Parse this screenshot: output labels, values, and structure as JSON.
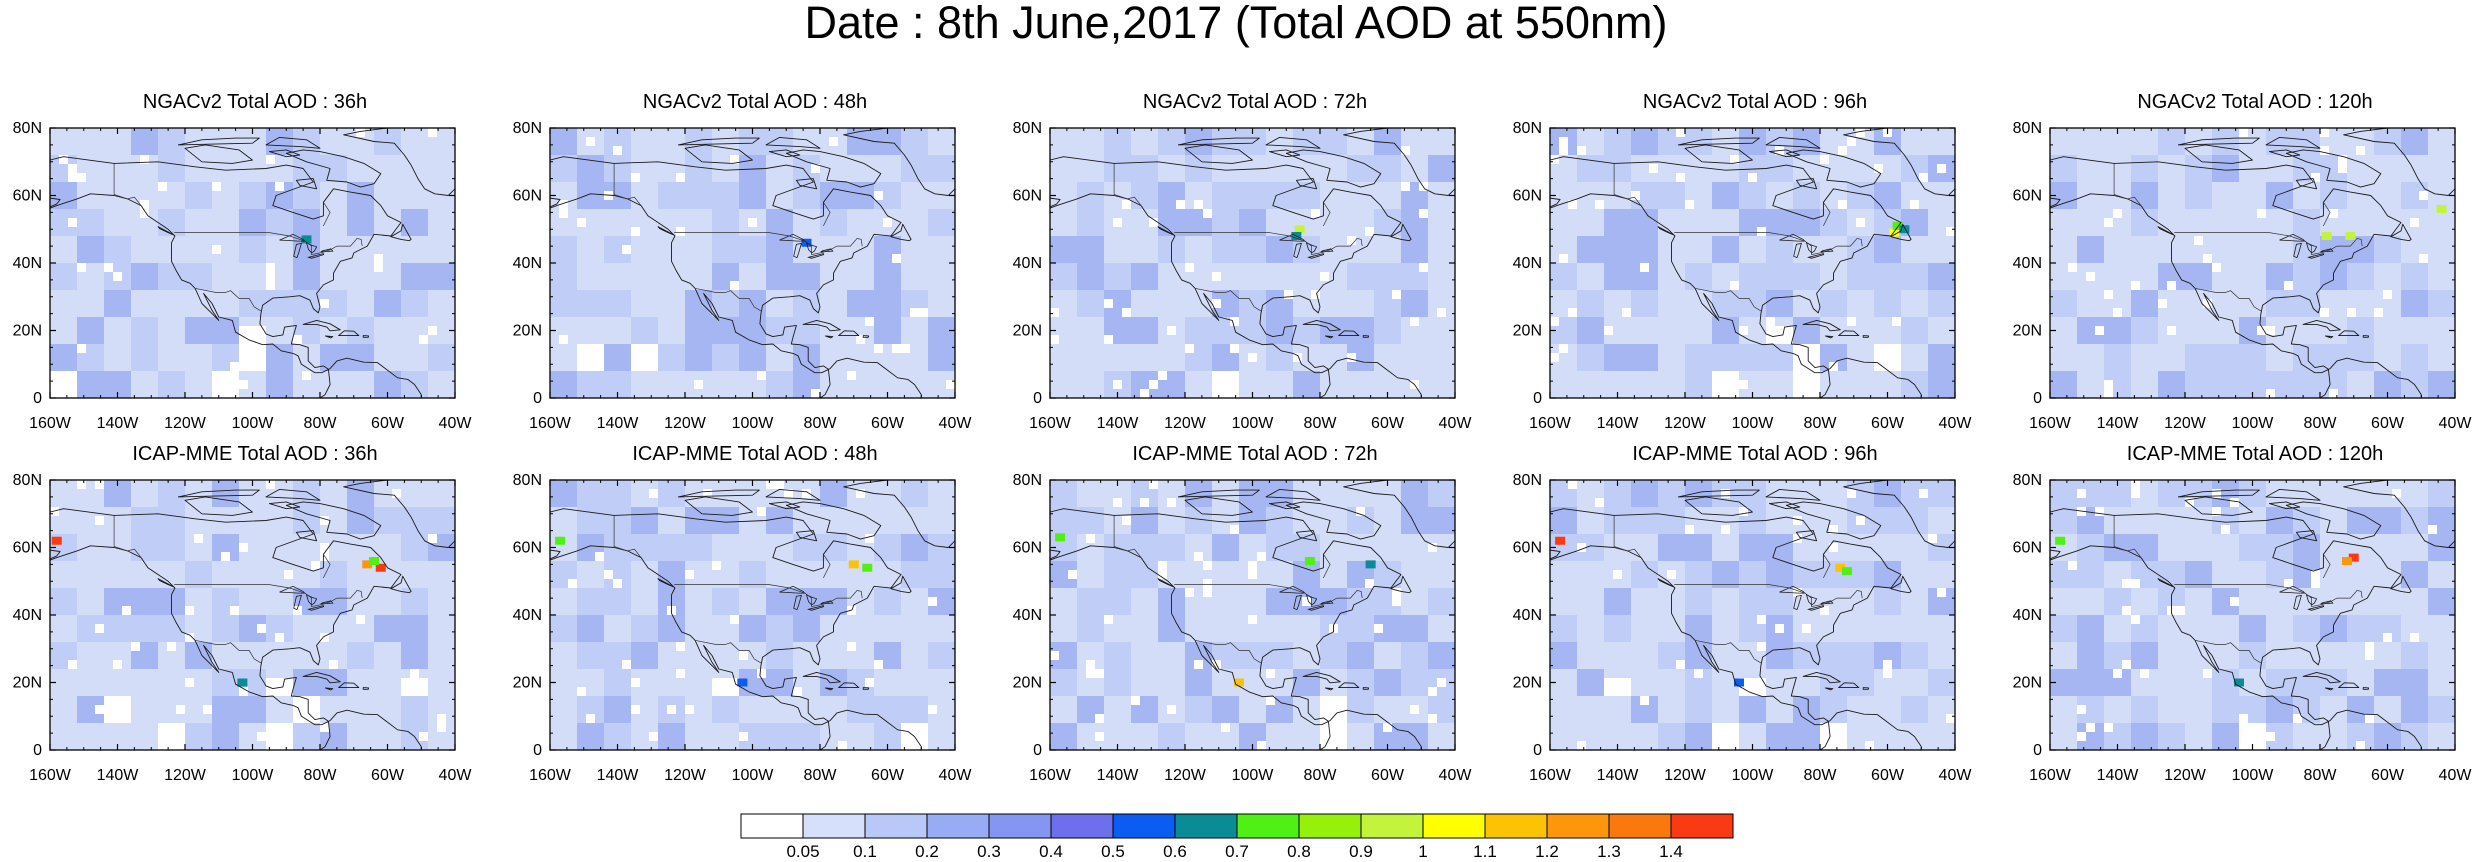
{
  "title": "Date : 8th June,2017 (Total AOD at 550nm)",
  "lat_labels": [
    "80N",
    "60N",
    "40N",
    "20N",
    "0"
  ],
  "lon_labels": [
    "160W",
    "140W",
    "120W",
    "100W",
    "80W",
    "60W",
    "40W"
  ],
  "panels": [
    {
      "id": "ngac-36",
      "title": "NGACv2 Total AOD : 36h"
    },
    {
      "id": "ngac-48",
      "title": "NGACv2 Total AOD : 48h"
    },
    {
      "id": "ngac-72",
      "title": "NGACv2 Total AOD : 72h"
    },
    {
      "id": "ngac-96",
      "title": "NGACv2 Total AOD : 96h"
    },
    {
      "id": "ngac-120",
      "title": "NGACv2 Total AOD : 120h"
    },
    {
      "id": "icap-36",
      "title": "ICAP-MME Total AOD : 36h"
    },
    {
      "id": "icap-48",
      "title": "ICAP-MME Total AOD : 48h"
    },
    {
      "id": "icap-72",
      "title": "ICAP-MME Total AOD : 72h"
    },
    {
      "id": "icap-96",
      "title": "ICAP-MME Total AOD : 96h"
    },
    {
      "id": "icap-120",
      "title": "ICAP-MME Total AOD : 120h"
    }
  ],
  "colorbar": {
    "levels": [
      "0.05",
      "0.1",
      "0.2",
      "0.3",
      "0.4",
      "0.5",
      "0.6",
      "0.7",
      "0.8",
      "0.9",
      "1",
      "1.1",
      "1.2",
      "1.3",
      "1.4"
    ],
    "colors": [
      "#ffffff",
      "#d6e0fa",
      "#b8c8f8",
      "#98acf6",
      "#8496f2",
      "#6c70ec",
      "#0a5cf2",
      "#0a8c96",
      "#50f014",
      "#96f00a",
      "#c4f33c",
      "#ffff00",
      "#fcc204",
      "#fc960a",
      "#fa780c",
      "#fa3a12"
    ]
  },
  "map_colors": {
    "ocean": "#d4ddf8",
    "land": "#c0cdf6",
    "dark": "#a6b6f2",
    "border": "#1a1a1a"
  }
}
